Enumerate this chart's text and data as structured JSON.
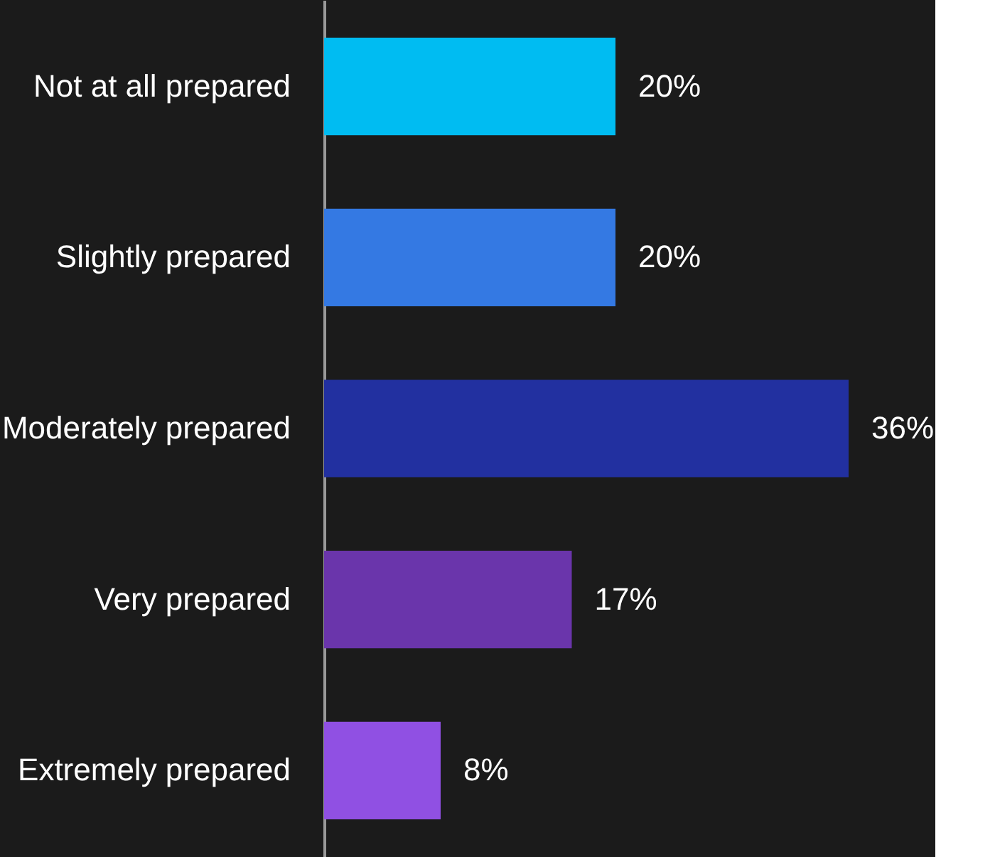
{
  "chart_data": {
    "type": "bar",
    "orientation": "horizontal",
    "categories": [
      "Not at all prepared",
      "Slightly prepared",
      "Moderately prepared",
      "Very prepared",
      "Extremely prepared"
    ],
    "values": [
      20,
      20,
      36,
      17,
      8
    ],
    "colors": [
      "#00bcf2",
      "#3479e3",
      "#2230a0",
      "#6a35ab",
      "#9050e3"
    ],
    "value_labels": [
      "20%",
      "20%",
      "36%",
      "17%",
      "8%"
    ],
    "grid": false,
    "legend": false
  }
}
